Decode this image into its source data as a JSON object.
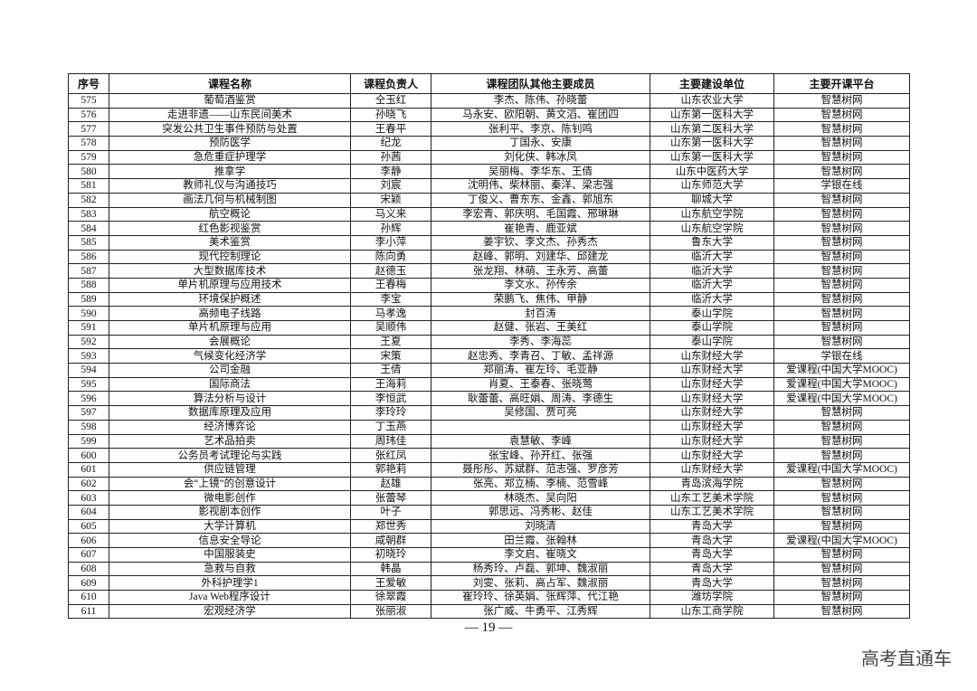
{
  "table": {
    "header": [
      "序号",
      "课程名称",
      "课程负责人",
      "课程团队其他主要成员",
      "主要建设单位",
      "主要开课平台"
    ],
    "rows": [
      [
        "575",
        "葡萄酒鉴赏",
        "仝玉红",
        "李杰、陈伟、孙晓蕾",
        "山东农业大学",
        "智慧树网"
      ],
      [
        "576",
        "走进非遗——山东民间美术",
        "孙晓飞",
        "马永安、欧阳朝、黄文滔、崔团四",
        "山东第一医科大学",
        "智慧树网"
      ],
      [
        "577",
        "突发公共卫生事件预防与处置",
        "王春平",
        "张利平、李京、陈钊鸣",
        "山东第二医科大学",
        "智慧树网"
      ],
      [
        "578",
        "预防医学",
        "纪龙",
        "丁国永、安康",
        "山东第一医科大学",
        "智慧树网"
      ],
      [
        "579",
        "急危重症护理学",
        "孙茜",
        "刘化侠、韩冰凤",
        "山东第一医科大学",
        "智慧树网"
      ],
      [
        "580",
        "推拿学",
        "李静",
        "吴丽梅、李华东、王倩",
        "山东中医药大学",
        "智慧树网"
      ],
      [
        "581",
        "教师礼仪与沟通技巧",
        "刘宸",
        "沈明伟、柴林丽、秦洋、梁志强",
        "山东师范大学",
        "学银在线"
      ],
      [
        "582",
        "画法几何与机械制图",
        "宋颖",
        "丁俊义、曹东东、金鑫、郭旭东",
        "聊城大学",
        "智慧树网"
      ],
      [
        "583",
        "航空概论",
        "马义来",
        "李宏青、郭庆明、毛国霞、邢琳琳",
        "山东航空学院",
        "智慧树网"
      ],
      [
        "584",
        "红色影视鉴赏",
        "孙辉",
        "崔艳青、鹿亚斌",
        "山东航空学院",
        "智慧树网"
      ],
      [
        "585",
        "美术鉴赏",
        "李小萍",
        "姜宇钦、李文杰、孙秀杰",
        "鲁东大学",
        "智慧树网"
      ],
      [
        "586",
        "现代控制理论",
        "陈向勇",
        "赵峰、郭明、刘建华、邱建龙",
        "临沂大学",
        "智慧树网"
      ],
      [
        "587",
        "大型数据库技术",
        "赵德玉",
        "张龙翔、林萌、王永芳、高蕾",
        "临沂大学",
        "智慧树网"
      ],
      [
        "588",
        "单片机原理与应用技术",
        "王春梅",
        "李文水、孙传余",
        "临沂大学",
        "智慧树网"
      ],
      [
        "589",
        "环境保护概述",
        "李宝",
        "荣鹏飞、焦伟、甲静",
        "临沂大学",
        "智慧树网"
      ],
      [
        "590",
        "高频电子线路",
        "马孝逸",
        "封百涛",
        "泰山学院",
        "智慧树网"
      ],
      [
        "591",
        "单片机原理与应用",
        "吴顺伟",
        "赵健、张岩、王美红",
        "泰山学院",
        "智慧树网"
      ],
      [
        "592",
        "会展概论",
        "王夏",
        "李秀、李海蕊",
        "泰山学院",
        "智慧树网"
      ],
      [
        "593",
        "气候变化经济学",
        "宋策",
        "赵忠秀、李青召、丁敏、孟祥源",
        "山东财经大学",
        "学银在线"
      ],
      [
        "594",
        "公司金融",
        "王倩",
        "郑丽涛、崔左玲、毛亚静",
        "山东财经大学",
        "爱课程(中国大学MOOC)"
      ],
      [
        "595",
        "国际商法",
        "王海莉",
        "肖夏、王泰春、张晓莺",
        "山东财经大学",
        "爱课程(中国大学MOOC)"
      ],
      [
        "596",
        "算法分析与设计",
        "李恒武",
        "耿蕾蕾、高旺娟、周涛、李德生",
        "山东财经大学",
        "爱课程(中国大学MOOC)"
      ],
      [
        "597",
        "数据库原理及应用",
        "李玲玲",
        "吴修国、贾可亮",
        "山东财经大学",
        "智慧树网"
      ],
      [
        "598",
        "经济博弈论",
        "丁玉燕",
        null,
        "山东财经大学",
        "智慧树网"
      ],
      [
        "599",
        "艺术品拍卖",
        "周玮佳",
        "袁慧敏、李峰",
        "山东财经大学",
        "智慧树网"
      ],
      [
        "600",
        "公务员考试理论与实践",
        "张红凤",
        "张宝峰、孙开红、张强",
        "山东财经大学",
        "智慧树网"
      ],
      [
        "601",
        "供应链管理",
        "郭艳莉",
        "聂彤彤、苏斌群、范志强、罗彦芳",
        "山东财经大学",
        "爱课程(中国大学MOOC)"
      ],
      [
        "602",
        "会“上镜”的创意设计",
        "赵雄",
        "张亮、郑立楠、李楠、范雪峰",
        "青岛滨海学院",
        "智慧树网"
      ],
      [
        "603",
        "微电影创作",
        "张蕾琴",
        "林晓杰、吴向阳",
        "山东工艺美术学院",
        "智慧树网"
      ],
      [
        "604",
        "影视剧本创作",
        "叶子",
        "郭思远、冯秀彬、赵佳",
        "山东工艺美术学院",
        "智慧树网"
      ],
      [
        "605",
        "大学计算机",
        "郑世秀",
        "刘晓清",
        "青岛大学",
        "智慧树网"
      ],
      [
        "606",
        "信息安全导论",
        "咸朝群",
        "田兰霞、张翰林",
        "青岛大学",
        "爱课程(中国大学MOOC)"
      ],
      [
        "607",
        "中国服装史",
        "初晓玲",
        "李文启、崔晓文",
        "青岛大学",
        "智慧树网"
      ],
      [
        "608",
        "急救与自救",
        "韩晶",
        "杨秀玲、卢磊、郭坤、魏淑丽",
        "青岛大学",
        "智慧树网"
      ],
      [
        "609",
        "外科护理学1",
        "王爱敏",
        "刘雯、张莉、高占军、魏淑丽",
        "青岛大学",
        "智慧树网"
      ],
      [
        "610",
        "Java Web程序设计",
        "徐翠霞",
        "崔玲玲、徐英娟、张辉萍、代江艳",
        "潍坊学院",
        "智慧树网"
      ],
      [
        "611",
        "宏观经济学",
        "张丽淑",
        "张广威、牛勇平、江秀辉",
        "山东工商学院",
        "智慧树网"
      ]
    ]
  },
  "footer": {
    "page": "— 19 —"
  },
  "watermark": "高考直通车"
}
